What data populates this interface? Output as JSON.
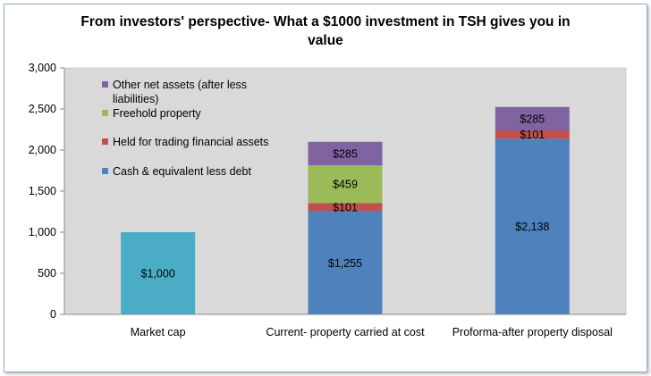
{
  "chart_data": {
    "type": "bar",
    "stacked": true,
    "title_lines": [
      "From investors' perspective- What a $1000 investment in TSH gives you in",
      "value"
    ],
    "xlabel": "",
    "ylabel": "",
    "ylim": [
      0,
      3000
    ],
    "yticks": [
      0,
      500,
      1000,
      1500,
      2000,
      2500,
      3000
    ],
    "ytick_labels": [
      "0",
      "500",
      "1,000",
      "1,500",
      "2,000",
      "2,500",
      "3,000"
    ],
    "categories": [
      "Market cap",
      "Current- property carried at cost",
      "Proforma-after property disposal"
    ],
    "series": [
      {
        "name": "Market cap",
        "color": "#4bacc6",
        "legend": false,
        "values": [
          1000,
          null,
          null
        ],
        "labels": [
          "$1,000",
          null,
          null
        ]
      },
      {
        "name": "Cash & equivalent less debt",
        "color": "#4f81bd",
        "legend": true,
        "values": [
          null,
          1255,
          2138
        ],
        "labels": [
          null,
          "$1,255",
          "$2,138"
        ]
      },
      {
        "name": "Held for trading financial assets",
        "color": "#c0504d",
        "legend": true,
        "values": [
          null,
          101,
          101
        ],
        "labels": [
          null,
          "$101",
          "$101"
        ]
      },
      {
        "name": "Freehold property",
        "color": "#9bbb59",
        "legend": true,
        "values": [
          null,
          459,
          null
        ],
        "labels": [
          null,
          "$459",
          null
        ]
      },
      {
        "name": "Other net assets (after less liabilities)",
        "legend_lines": [
          "Other net assets (after less",
          "liabilities)"
        ],
        "color": "#8064a2",
        "legend": true,
        "values": [
          null,
          285,
          285
        ],
        "labels": [
          null,
          "$285",
          "$285"
        ]
      }
    ],
    "legend_order": [
      4,
      3,
      2,
      1
    ],
    "legend_position": "top-left",
    "plot_background": "#d9d9d9",
    "grid": false
  }
}
